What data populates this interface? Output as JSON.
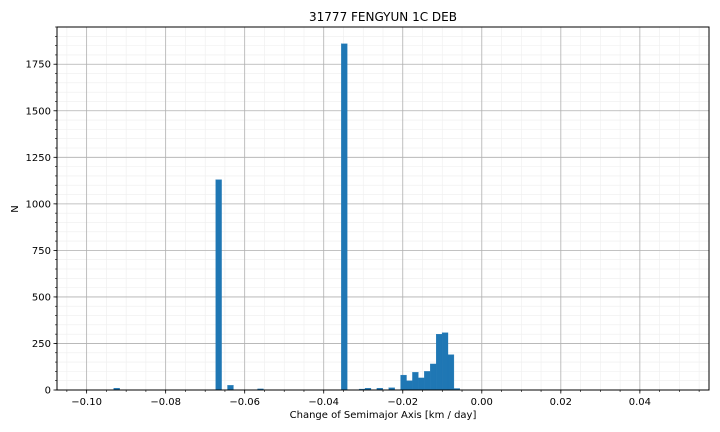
{
  "chart_data": {
    "type": "bar",
    "title": "31777 FENGYUN 1C DEB",
    "xlabel": "Change of Semimajor Axis [km / day]",
    "ylabel": "N",
    "xlim": [
      -0.1075,
      0.0575
    ],
    "ylim": [
      0,
      1950
    ],
    "grid": true,
    "minor_grid": true,
    "legend": "none",
    "bar_color": "#1f77b4",
    "bin_width": 0.0015,
    "x_ticks": [
      -0.1,
      -0.08,
      -0.06,
      -0.04,
      -0.02,
      0.0,
      0.02,
      0.04
    ],
    "x_tick_labels": [
      "−0.10",
      "−0.08",
      "−0.06",
      "−0.04",
      "−0.02",
      "0.00",
      "0.02",
      "0.04"
    ],
    "y_ticks": [
      0,
      250,
      500,
      750,
      1000,
      1250,
      1500,
      1750
    ],
    "y_tick_labels": [
      "0",
      "250",
      "500",
      "750",
      "1000",
      "1250",
      "1500",
      "1750"
    ],
    "bins": [
      {
        "x": -0.0924,
        "count": 10
      },
      {
        "x": -0.0666,
        "count": 1130
      },
      {
        "x": -0.0636,
        "count": 25
      },
      {
        "x": -0.056,
        "count": 6
      },
      {
        "x": -0.0348,
        "count": 1860
      },
      {
        "x": -0.0303,
        "count": 5
      },
      {
        "x": -0.0288,
        "count": 10
      },
      {
        "x": -0.0258,
        "count": 10
      },
      {
        "x": -0.0228,
        "count": 12
      },
      {
        "x": -0.0198,
        "count": 80
      },
      {
        "x": -0.0183,
        "count": 50
      },
      {
        "x": -0.0168,
        "count": 95
      },
      {
        "x": -0.0153,
        "count": 65
      },
      {
        "x": -0.0138,
        "count": 100
      },
      {
        "x": -0.0123,
        "count": 140
      },
      {
        "x": -0.0108,
        "count": 300
      },
      {
        "x": -0.0093,
        "count": 308
      },
      {
        "x": -0.0078,
        "count": 190
      },
      {
        "x": -0.0063,
        "count": 8
      }
    ]
  }
}
